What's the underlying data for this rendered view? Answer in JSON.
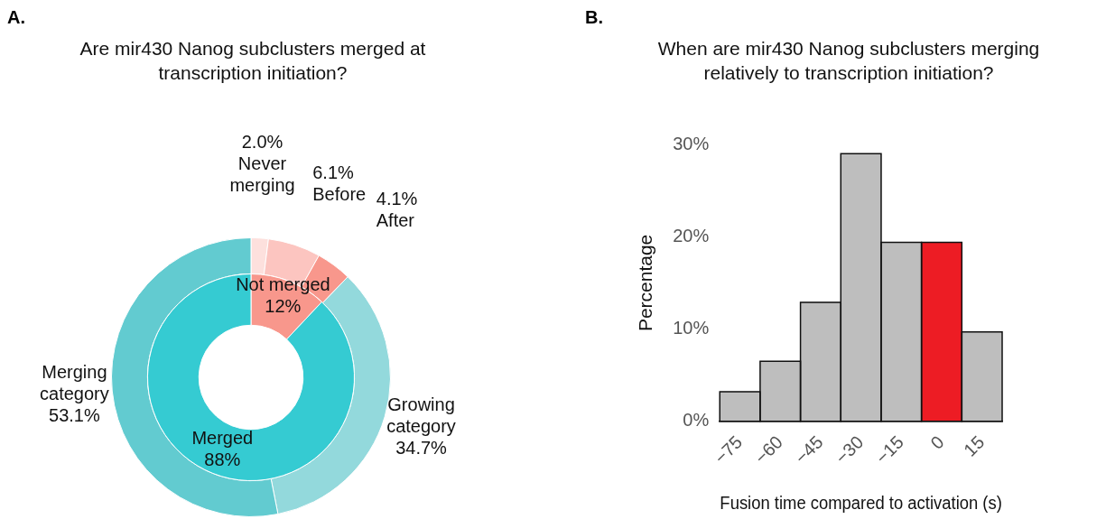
{
  "chart_data": [
    {
      "type": "donut",
      "title": "Are mir430 Nanog subclusters merged at transcription initiation?",
      "annotations": [
        "A."
      ],
      "categories": [
        "Never merging",
        "Before",
        "After",
        "Growing category",
        "Merging category"
      ],
      "values": [
        2.0,
        6.1,
        4.1,
        34.7,
        53.1
      ],
      "colors": [
        "#fde0dd",
        "#fcc5c0",
        "#f8978c",
        "#93d9dc",
        "#62cbd0"
      ],
      "value_labels": [
        "2.0%",
        "6.1%",
        "4.1%",
        "34.7%",
        "53.1%"
      ]
    },
    {
      "type": "donut",
      "categories": [
        "Not merged",
        "Merged"
      ],
      "values": [
        12,
        88
      ],
      "colors": [
        "#f8978c",
        "#35cbd2"
      ],
      "value_labels": [
        "12%",
        "88%"
      ]
    },
    {
      "type": "histogram",
      "title": "When are mir430 Nanog subclusters merging relatively to transcription initiation?",
      "annotations": [
        "B."
      ],
      "xlabel": "Fusion time compared to activation (s)",
      "ylabel": "Percentage",
      "bins": [
        -82.5,
        -67.5,
        -52.5,
        -37.5,
        -22.5,
        -7.5,
        7.5,
        22.5
      ],
      "values": [
        3.2,
        6.5,
        12.9,
        29.0,
        19.4,
        19.4,
        9.7
      ],
      "colors": [
        "#bebebe",
        "#bebebe",
        "#bebebe",
        "#bebebe",
        "#bebebe",
        "#ed1c24",
        "#bebebe"
      ],
      "xlim": [
        -82.5,
        22.5
      ],
      "xticks": [
        {
          "value": -75,
          "label": "−75"
        },
        {
          "value": -60,
          "label": "−60"
        },
        {
          "value": -45,
          "label": "−45"
        },
        {
          "value": -30,
          "label": "−30"
        },
        {
          "value": -15,
          "label": "−15"
        },
        0,
        15
      ],
      "ylim": [
        0,
        30
      ],
      "yticks": [
        {
          "value": 0,
          "label": "0%"
        },
        {
          "value": 10,
          "label": "10%"
        },
        {
          "value": 20,
          "label": "20%"
        },
        {
          "value": 30,
          "label": "30%"
        }
      ],
      "grid": false
    }
  ]
}
